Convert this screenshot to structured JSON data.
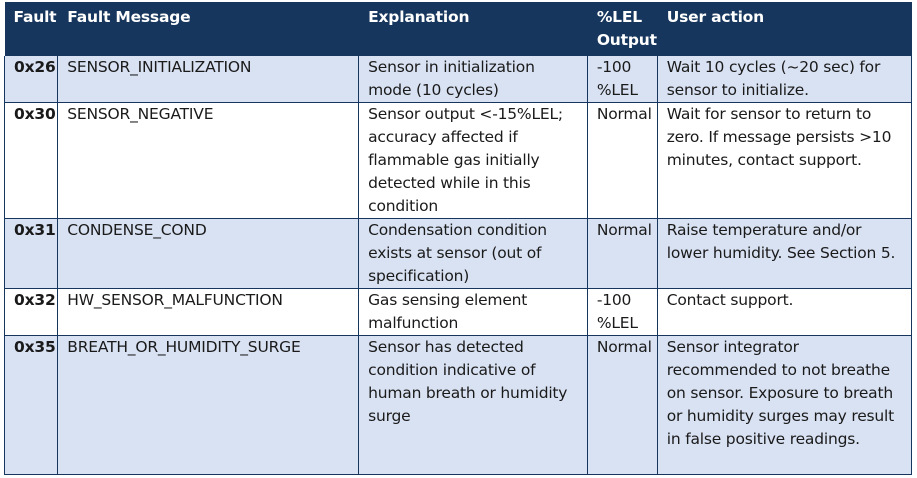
{
  "table": {
    "headers": {
      "fault": "Fault",
      "message": "Fault Message",
      "explanation": "Explanation",
      "output": "%LEL Output",
      "action": "User action"
    },
    "rows": [
      {
        "code": "0x26",
        "message": "SENSOR_INITIALIZATION",
        "explanation": "Sensor in initialization mode (10 cycles)",
        "output": "-100 %LEL",
        "action": "Wait 10 cycles (~20 sec) for sensor to initialize."
      },
      {
        "code": "0x30",
        "message": "SENSOR_NEGATIVE",
        "explanation": "Sensor output <-15%LEL; accuracy affected if flammable gas initially detected while in this condition",
        "output": "Normal",
        "action": "Wait for sensor to return to zero. If message persists >10 minutes, contact support."
      },
      {
        "code": "0x31",
        "message": "CONDENSE_COND",
        "explanation": "Condensation condition exists at sensor (out of specification)",
        "output": "Normal",
        "action": "Raise temperature and/or lower humidity. See Section 5."
      },
      {
        "code": "0x32",
        "message": "HW_SENSOR_MALFUNCTION",
        "explanation": "Gas sensing element malfunction",
        "output": "-100 %LEL",
        "action": "Contact support."
      },
      {
        "code": "0x35",
        "message": "BREATH_OR_HUMIDITY_SURGE",
        "explanation": "Sensor has detected condition indicative of human breath or humidity surge",
        "output": "Normal",
        "action": "Sensor integrator recommended to not breathe on sensor. Exposure to breath or humidity surges may result in false positive readings."
      }
    ]
  },
  "colors": {
    "header_bg": "#17365d",
    "shaded_row_bg": "#d9e2f3",
    "plain_row_bg": "#ffffff",
    "border": "#17365d"
  }
}
